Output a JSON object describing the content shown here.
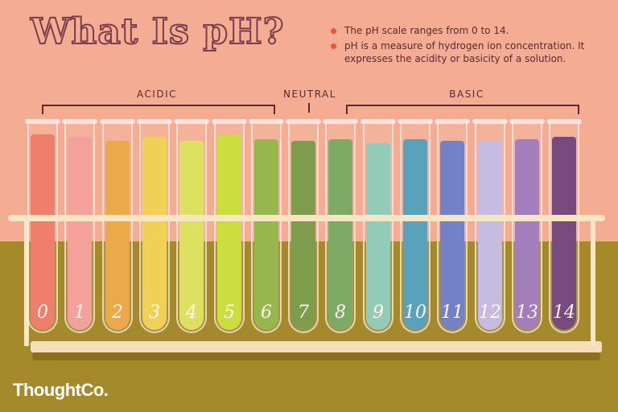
{
  "title": "What Is pH?",
  "bullets": [
    "The pH scale ranges from 0 to 14.",
    "pH is a measure of hydrogen ion concentration. It expresses the acidity or basicity of a solution."
  ],
  "groups": {
    "acidic": "ACIDIC",
    "neutral": "NEUTRAL",
    "basic": "BASIC"
  },
  "tubes": [
    {
      "label": "0",
      "color": "#ee7560",
      "fill": 0.94
    },
    {
      "label": "1",
      "color": "#f29a92",
      "fill": 0.93
    },
    {
      "label": "2",
      "color": "#eba23a",
      "fill": 0.91
    },
    {
      "label": "3",
      "color": "#f0cc4a",
      "fill": 0.93
    },
    {
      "label": "4",
      "color": "#d9df54",
      "fill": 0.91
    },
    {
      "label": "5",
      "color": "#c6dd2f",
      "fill": 0.94
    },
    {
      "label": "6",
      "color": "#8eb13e",
      "fill": 0.92
    },
    {
      "label": "7",
      "color": "#72943d",
      "fill": 0.91
    },
    {
      "label": "8",
      "color": "#72a45a",
      "fill": 0.92
    },
    {
      "label": "9",
      "color": "#89c7b2",
      "fill": 0.9
    },
    {
      "label": "10",
      "color": "#4b9bb6",
      "fill": 0.92
    },
    {
      "label": "11",
      "color": "#6878c2",
      "fill": 0.91
    },
    {
      "label": "12",
      "color": "#c2b7df",
      "fill": 0.91
    },
    {
      "label": "13",
      "color": "#9c73b7",
      "fill": 0.92
    },
    {
      "label": "14",
      "color": "#6e3b74",
      "fill": 0.93
    }
  ],
  "logo": {
    "name": "ThoughtCo"
  },
  "colors": {
    "wall": "#f4ac92",
    "table": "#a48a2a",
    "rack": "#f7e6c4",
    "text": "#5a2b30"
  }
}
